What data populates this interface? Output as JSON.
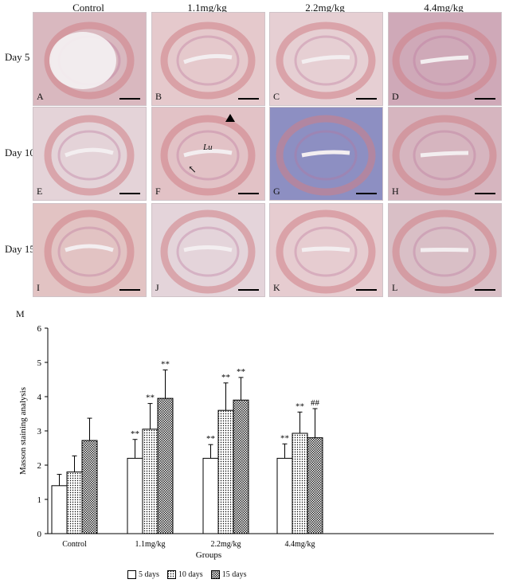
{
  "columns": [
    "Control",
    "1.1mg/kg",
    "2.2mg/kg",
    "4.4mg/kg"
  ],
  "rows": [
    "Day 5",
    "Day 10",
    "Day 15"
  ],
  "panel_labels": [
    "A",
    "B",
    "C",
    "D",
    "E",
    "F",
    "G",
    "H",
    "I",
    "J",
    "K",
    "L"
  ],
  "annotations": {
    "lumen": "Lu"
  },
  "chart_label": "M",
  "chart_data": {
    "type": "bar",
    "categories": [
      "Control",
      "1.1mg/kg",
      "2.2mg/kg",
      "4.4mg/kg"
    ],
    "series": [
      {
        "name": "5 days",
        "values": [
          1.4,
          2.2,
          2.2,
          2.2
        ],
        "errors": [
          0.33,
          0.55,
          0.4,
          0.42
        ],
        "marks": [
          "",
          "**",
          "**",
          "**"
        ]
      },
      {
        "name": "10 days",
        "values": [
          1.8,
          3.05,
          3.6,
          2.93
        ],
        "errors": [
          0.47,
          0.75,
          0.8,
          0.62
        ],
        "marks": [
          "",
          "**",
          "**",
          "**"
        ]
      },
      {
        "name": "15 days",
        "values": [
          2.72,
          3.95,
          3.9,
          2.8
        ],
        "errors": [
          0.65,
          0.83,
          0.66,
          0.85
        ],
        "marks": [
          "",
          "**",
          "**",
          "##"
        ]
      }
    ],
    "xlabel": "Groups",
    "ylabel": "Masson staining analysis",
    "ylim": [
      0,
      6
    ],
    "yticks": [
      0,
      1,
      2,
      3,
      4,
      5,
      6
    ],
    "grid": false,
    "legend": "bottom"
  }
}
